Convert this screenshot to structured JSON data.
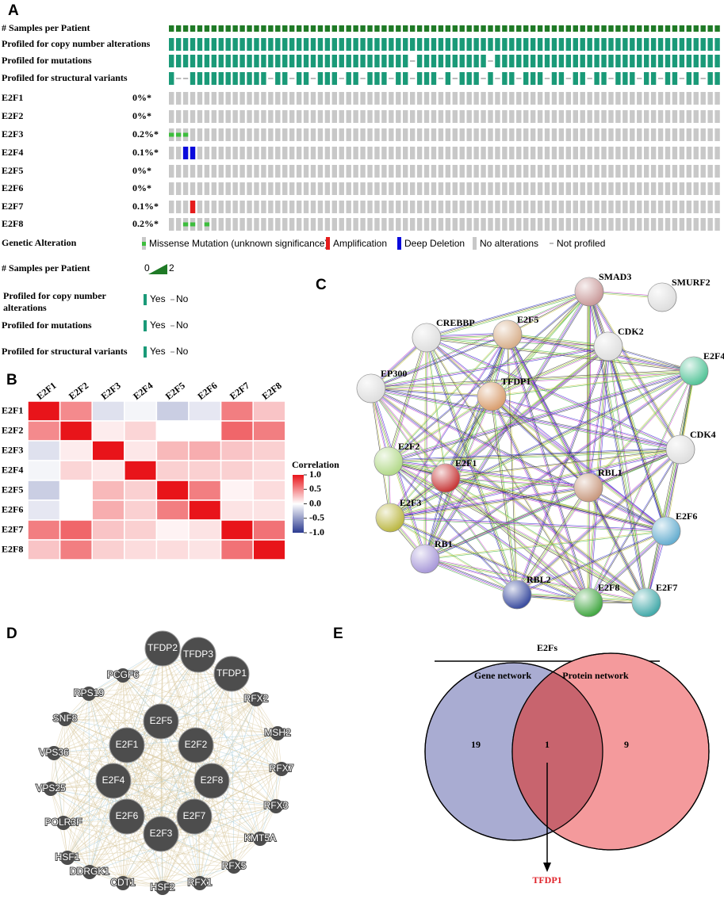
{
  "figure": {
    "panel_labels": [
      "A",
      "B",
      "C",
      "D",
      "E"
    ],
    "oncoprint": {
      "tracks": [
        "# Samples per Patient",
        "Profiled for copy number alterations",
        "Profiled for mutations",
        "Profiled for structural variants"
      ],
      "genes": [
        "E2F1",
        "E2F2",
        "E2F3",
        "E2F4",
        "E2F5",
        "E2F6",
        "E2F7",
        "E2F8"
      ],
      "frequencies": [
        "0%*",
        "0%*",
        "0.2%*",
        "0.1%*",
        "0%*",
        "0%*",
        "0.1%*",
        "0.2%*"
      ],
      "legend": {
        "genetic_title": "Genetic Alteration",
        "genetic_items": [
          "Missense Mutation (unknown significance)",
          "Amplification",
          "Deep Deletion",
          "No alterations",
          "Not profiled"
        ],
        "samples_title": "# Samples per Patient",
        "samples_min": "0",
        "samples_max": "2",
        "profiled_titles": [
          "Profiled for copy number alterations",
          "Profiled for mutations",
          "Profiled for structural variants"
        ],
        "yes": "Yes",
        "no": "No"
      }
    },
    "network_c": {
      "nodes": [
        {
          "label": "SMAD3",
          "color": "#c99a9a"
        },
        {
          "label": "SMURF2",
          "color": "#dedede"
        },
        {
          "label": "CREBBP",
          "color": "#dedede"
        },
        {
          "label": "E2F5",
          "color": "#d8b08c"
        },
        {
          "label": "CDK2",
          "color": "#dedede"
        },
        {
          "label": "E2F4",
          "color": "#55c499"
        },
        {
          "label": "EP300",
          "color": "#dedede"
        },
        {
          "label": "TFDP1",
          "color": "#d99f70"
        },
        {
          "label": "CDK4",
          "color": "#dedede"
        },
        {
          "label": "E2F2",
          "color": "#b3d98a"
        },
        {
          "label": "E2F1",
          "color": "#c73838"
        },
        {
          "label": "RBL1",
          "color": "#c99a80"
        },
        {
          "label": "E2F3",
          "color": "#bcb845"
        },
        {
          "label": "E2F6",
          "color": "#66aed0"
        },
        {
          "label": "RB1",
          "color": "#a99ad9"
        },
        {
          "label": "RBL2",
          "color": "#3c4ea0"
        },
        {
          "label": "E2F8",
          "color": "#44a844"
        },
        {
          "label": "E2F7",
          "color": "#44aaaa"
        }
      ]
    },
    "network_d": {
      "nodes": [
        "TFDP2",
        "TFDP3",
        "TFDP1",
        "E2F5",
        "E2F1",
        "E2F2",
        "E2F4",
        "E2F8",
        "E2F6",
        "E2F7",
        "E2F3",
        "PCGF6",
        "RPS19",
        "SNF8",
        "VPS36",
        "VPS25",
        "POLR3F",
        "HSF1",
        "DDRGK1",
        "CDT1",
        "HSF2",
        "RFX1",
        "RFX5",
        "KMT5A",
        "RFX3",
        "RFX7",
        "MSH2",
        "RFX2"
      ]
    }
  },
  "chart_data": [
    {
      "type": "heatmap",
      "categories": [
        "E2F1",
        "E2F2",
        "E2F3",
        "E2F4",
        "E2F5",
        "E2F6",
        "E2F7",
        "E2F8"
      ],
      "values": [
        [
          1,
          0.5,
          -0.15,
          -0.05,
          -0.25,
          -0.12,
          0.55,
          0.25
        ],
        [
          0.5,
          1,
          0.08,
          0.18,
          0,
          0,
          0.65,
          0.55
        ],
        [
          -0.15,
          0.08,
          1,
          0.1,
          0.3,
          0.35,
          0.25,
          0.2
        ],
        [
          -0.05,
          0.18,
          0.1,
          1,
          0.2,
          0.2,
          0.2,
          0.15
        ],
        [
          -0.25,
          0,
          0.3,
          0.2,
          1,
          0.55,
          0.05,
          0.15
        ],
        [
          -0.12,
          0,
          0.35,
          0.2,
          0.55,
          1,
          0.12,
          0.12
        ],
        [
          0.55,
          0.65,
          0.25,
          0.2,
          0.05,
          0.12,
          1,
          0.6
        ],
        [
          0.25,
          0.55,
          0.2,
          0.15,
          0.15,
          0.12,
          0.6,
          1
        ]
      ],
      "colorbar_title": "Correlation",
      "zlim": [
        -1,
        1
      ],
      "zticks": [
        {
          "value": 1,
          "label": "1.0"
        },
        0.5,
        {
          "value": 0,
          "label": "0.0"
        },
        -0.5,
        {
          "value": -1,
          "label": "-1.0"
        }
      ],
      "colors": [
        "#2b3a8f",
        "#ffffff",
        "#e8141a"
      ]
    },
    {
      "type": "venn",
      "title": "E2Fs",
      "sets": [
        "Gene network",
        "Protein network"
      ],
      "values": [
        19,
        1,
        9
      ],
      "colors": [
        "#a9acd2",
        "#f49a9c",
        "#c8646e"
      ],
      "highlight": "TFDP1",
      "highlight_color": "#e0222a"
    }
  ]
}
